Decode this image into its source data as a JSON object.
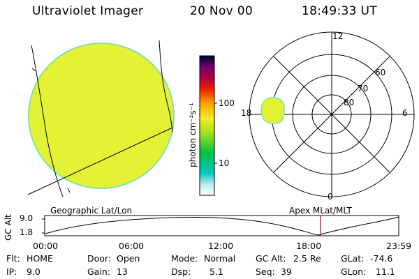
{
  "header": {
    "title": "Ultraviolet Imager",
    "date": "20 Nov 00",
    "time": "18:49:33 UT"
  },
  "colorbar": {
    "unit_label": "photon cm⁻²s⁻¹",
    "tick_labels": [
      "100",
      "10"
    ]
  },
  "polar_plot": {
    "mlt_labels": {
      "top": "12",
      "left": "18",
      "right": "6",
      "bottom": "0"
    },
    "lat_labels": [
      "60",
      "70",
      "80"
    ]
  },
  "orbit_panel": {
    "axis_label": "GC Alt",
    "y_ticks": [
      "9.0",
      "1.8"
    ],
    "left_title": "Geographic Lat/Lon",
    "right_title": "Apex MLat/MLT",
    "time_ticks": [
      "00:00",
      "06:00",
      "12:00",
      "18:00",
      "23:59"
    ]
  },
  "info_rows": [
    [
      {
        "label": "Flt:",
        "value": "HOME"
      },
      {
        "label": "Door:",
        "value": "Open"
      },
      {
        "label": "Mode:",
        "value": "Normal"
      },
      {
        "label": "GC Alt:",
        "value": "2.5 Re"
      },
      {
        "label": "GLat:",
        "value": "-74.6"
      }
    ],
    [
      {
        "label": "IP:",
        "value": "9.0"
      },
      {
        "label": "Gain:",
        "value": "13"
      },
      {
        "label": "Dsp:",
        "value": "5.1"
      },
      {
        "label": "Seq:",
        "value": "39"
      },
      {
        "label": "GLon:",
        "value": "11.1"
      }
    ]
  ],
  "colors": {
    "image_fill": "#e2f230",
    "image_edge": "#7ce0b0",
    "current_time_marker": "#cc0000"
  }
}
